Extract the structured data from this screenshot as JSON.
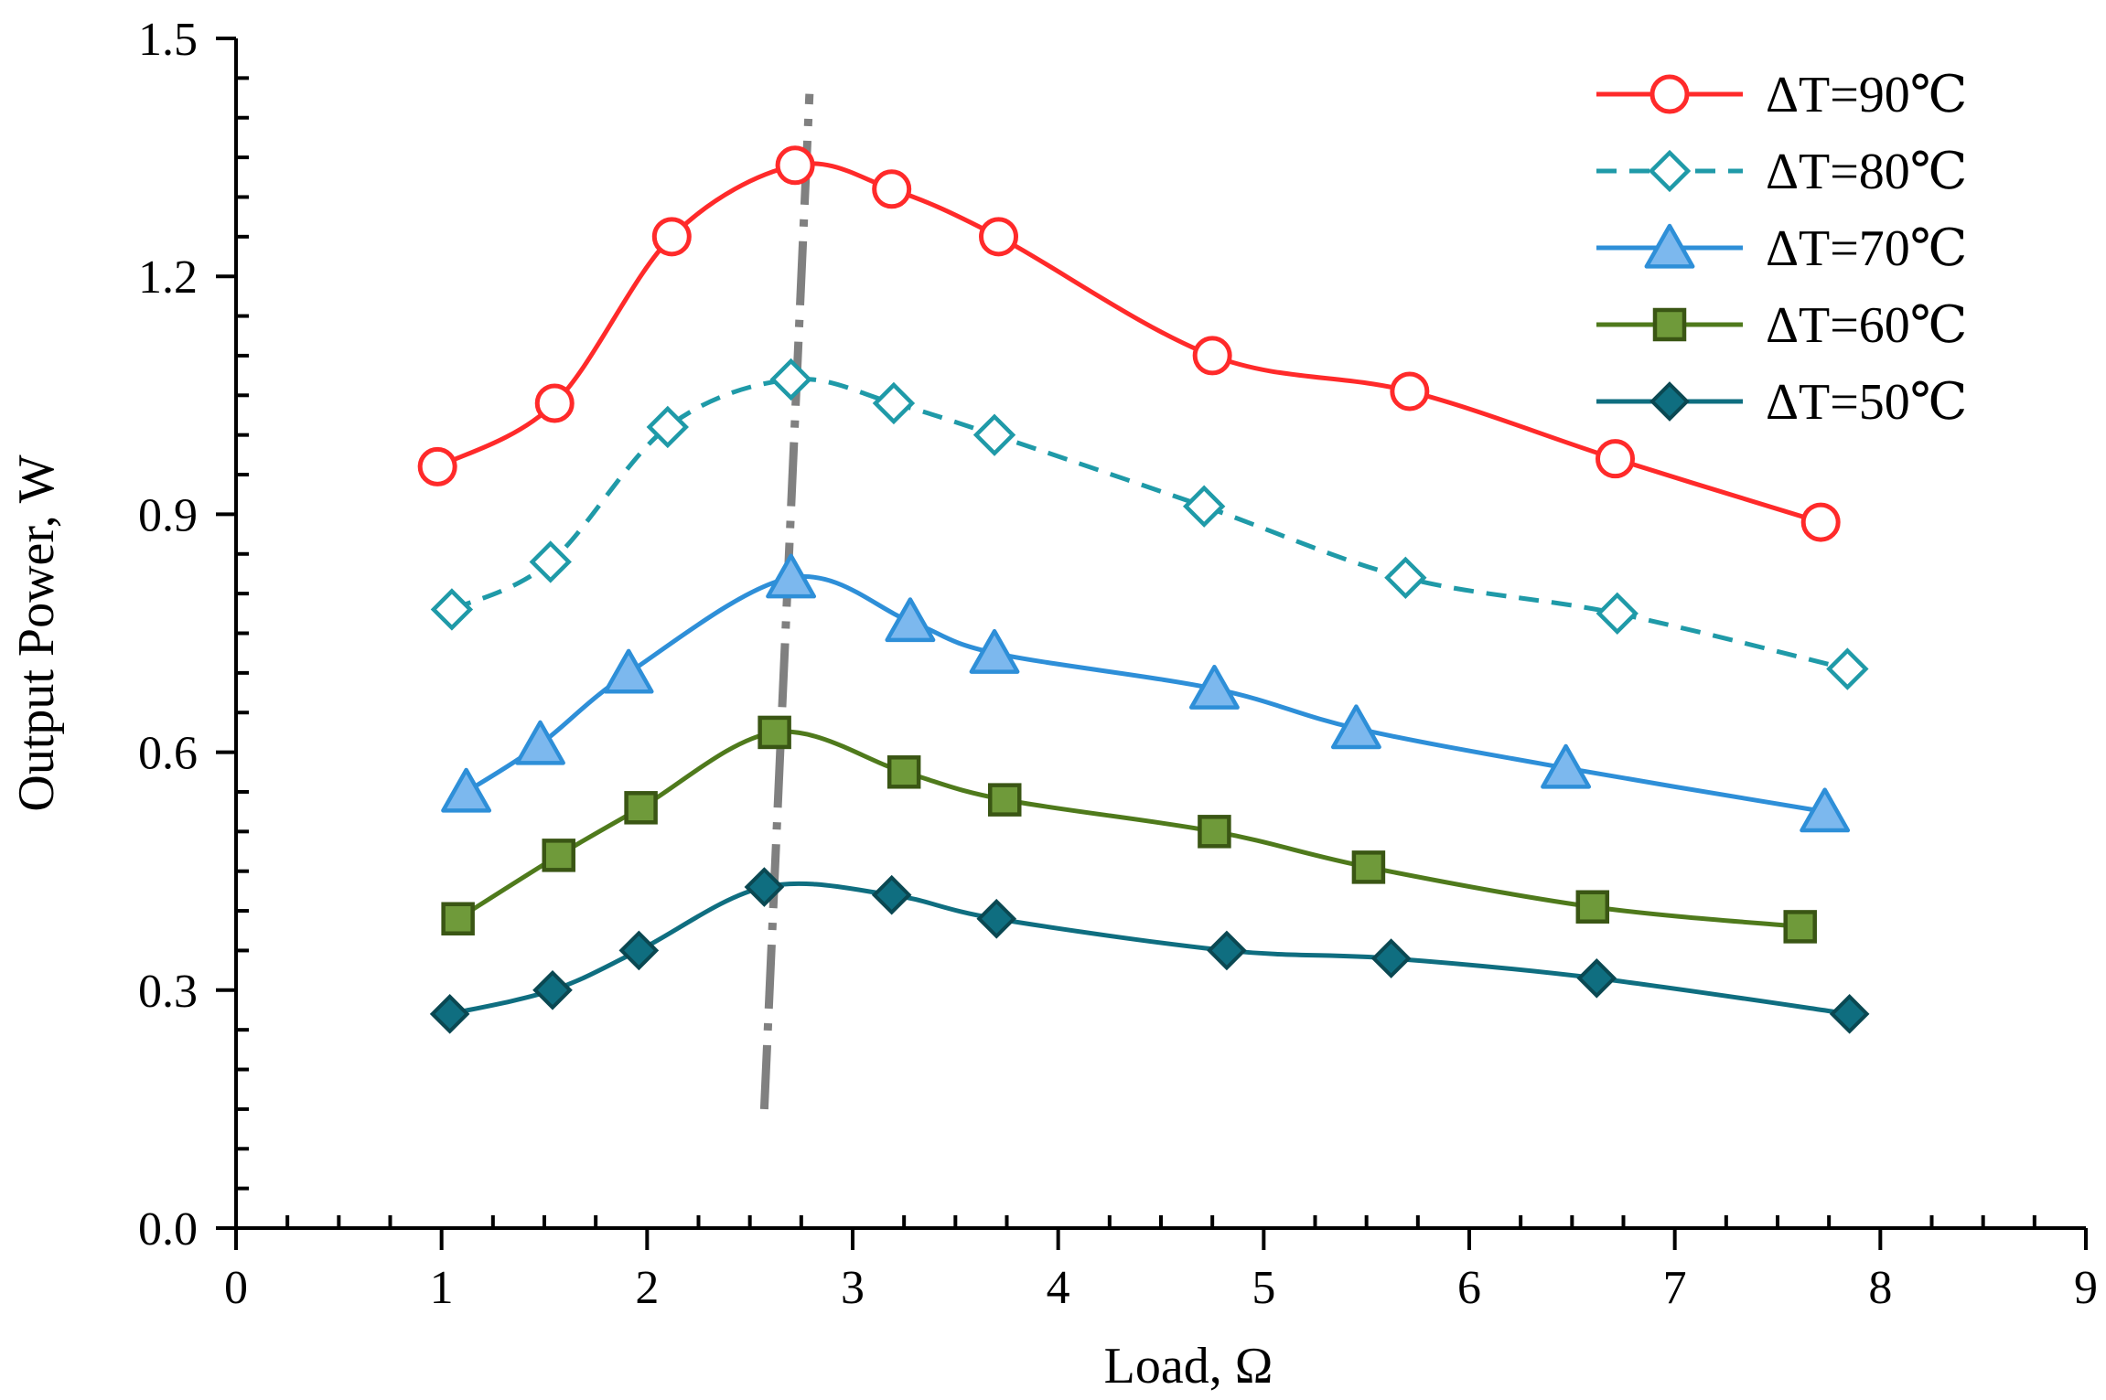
{
  "chart_data": {
    "type": "line",
    "title": "",
    "xlabel": "Load, Ω",
    "ylabel": "Output Power, W",
    "xlim": [
      0,
      9
    ],
    "ylim": [
      0.0,
      1.5
    ],
    "x_ticks": [
      "0",
      "1",
      "2",
      "3",
      "4",
      "5",
      "6",
      "7",
      "8",
      "9"
    ],
    "y_ticks": [
      "0.0",
      "0.3",
      "0.6",
      "0.9",
      "1.2",
      "1.5"
    ],
    "grid": false,
    "legend_position": "top-right",
    "series": [
      {
        "name": "ΔT=90℃",
        "color": "#ff2a2a",
        "marker": "circle-open",
        "dash": "solid",
        "x": [
          0.98,
          1.55,
          2.12,
          2.72,
          3.19,
          3.71,
          4.75,
          5.71,
          6.71,
          7.71
        ],
        "y": [
          0.96,
          1.04,
          1.25,
          1.34,
          1.31,
          1.25,
          1.1,
          1.055,
          0.97,
          0.89
        ]
      },
      {
        "name": "ΔT=80℃",
        "color": "#1f9aa8",
        "marker": "diamond-open",
        "dash": "dashed",
        "x": [
          1.05,
          1.53,
          2.1,
          2.7,
          3.2,
          3.69,
          4.71,
          5.69,
          6.72,
          7.84
        ],
        "y": [
          0.78,
          0.84,
          1.01,
          1.07,
          1.04,
          1.0,
          0.91,
          0.82,
          0.775,
          0.705
        ]
      },
      {
        "name": "ΔT=70℃",
        "color": "#2e8fd8",
        "marker": "triangle-filled",
        "dash": "solid",
        "x": [
          1.12,
          1.48,
          1.91,
          2.7,
          3.28,
          3.69,
          4.76,
          5.45,
          6.47,
          7.73
        ],
        "y": [
          0.55,
          0.61,
          0.7,
          0.82,
          0.765,
          0.725,
          0.68,
          0.63,
          0.58,
          0.525
        ]
      },
      {
        "name": "ΔT=60℃",
        "color": "#4f7a1c",
        "marker": "square-filled",
        "dash": "solid",
        "x": [
          1.08,
          1.57,
          1.97,
          2.62,
          3.25,
          3.74,
          4.76,
          5.51,
          6.6,
          7.61
        ],
        "y": [
          0.39,
          0.47,
          0.53,
          0.625,
          0.575,
          0.54,
          0.5,
          0.455,
          0.405,
          0.38
        ]
      },
      {
        "name": "ΔT=50℃",
        "color": "#0f6e80",
        "marker": "diamond-filled",
        "dash": "solid",
        "x": [
          1.04,
          1.54,
          1.96,
          2.57,
          3.19,
          3.7,
          4.82,
          5.62,
          6.62,
          7.85
        ],
        "y": [
          0.27,
          0.3,
          0.35,
          0.43,
          0.42,
          0.39,
          0.35,
          0.34,
          0.315,
          0.27
        ]
      }
    ],
    "annotations": [
      {
        "type": "dash-dot trend line",
        "color": "#808080",
        "x": [
          2.57,
          2.79
        ],
        "y": [
          0.15,
          1.43
        ]
      }
    ]
  }
}
